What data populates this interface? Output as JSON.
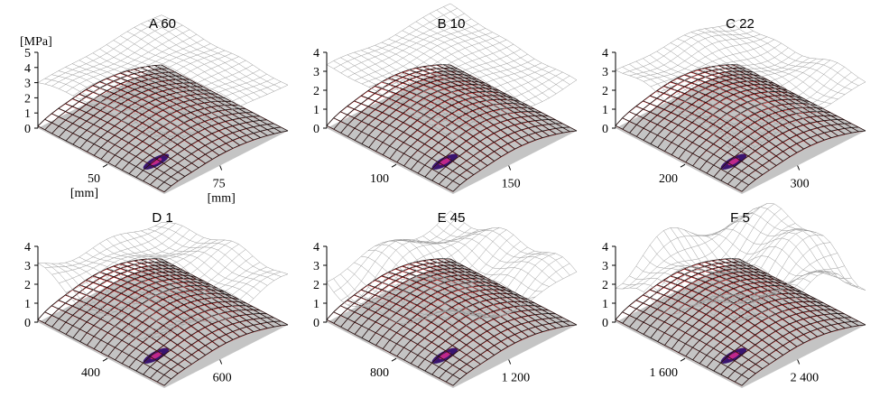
{
  "chart_data": {
    "type": "surface",
    "z_unit": "[MPa]",
    "length_unit": "[mm]",
    "panels": [
      {
        "label": "A",
        "value": "60",
        "z_ticks": [
          "5",
          "4",
          "3",
          "2",
          "1",
          "0"
        ],
        "zlim": [
          0,
          5
        ],
        "x_ticks": [
          "50"
        ],
        "y_ticks": [
          "75"
        ],
        "upper_surface_mean": 3.0,
        "upper_surface_roughness": 0.25
      },
      {
        "label": "B",
        "value": "10",
        "z_ticks": [
          "4",
          "3",
          "2",
          "1",
          "0"
        ],
        "zlim": [
          0,
          4
        ],
        "x_ticks": [
          "100"
        ],
        "y_ticks": [
          "150"
        ],
        "upper_surface_mean": 2.9,
        "upper_surface_roughness": 0.2
      },
      {
        "label": "C",
        "value": "22",
        "z_ticks": [
          "4",
          "3",
          "2",
          "1",
          "0"
        ],
        "zlim": [
          0,
          4
        ],
        "x_ticks": [
          "200"
        ],
        "y_ticks": [
          "300"
        ],
        "upper_surface_mean": 2.7,
        "upper_surface_roughness": 0.45
      },
      {
        "label": "D",
        "value": "1",
        "z_ticks": [
          "4",
          "3",
          "2",
          "1",
          "0"
        ],
        "zlim": [
          0,
          4
        ],
        "x_ticks": [
          "400"
        ],
        "y_ticks": [
          "600"
        ],
        "upper_surface_mean": 2.6,
        "upper_surface_roughness": 0.6
      },
      {
        "label": "E",
        "value": "45",
        "z_ticks": [
          "4",
          "3",
          "2",
          "1",
          "0"
        ],
        "zlim": [
          0,
          4
        ],
        "x_ticks": [
          "800"
        ],
        "y_ticks": [
          "1 200"
        ],
        "upper_surface_mean": 2.6,
        "upper_surface_roughness": 0.9
      },
      {
        "label": "F",
        "value": "5",
        "z_ticks": [
          "4",
          "3",
          "2",
          "1",
          "0"
        ],
        "zlim": [
          0,
          4
        ],
        "x_ticks": [
          "1 600"
        ],
        "y_ticks": [
          "2 400"
        ],
        "upper_surface_mean": 2.7,
        "upper_surface_roughness": 1.2
      }
    ]
  },
  "colors": {
    "upper_mesh": "#9a9a9a",
    "lower_mesh": "#111111",
    "red_mesh": "#e02020",
    "floor": "#c4c4c4",
    "hotspot": "#3a1570",
    "hotspot_core": "#c0288a"
  }
}
